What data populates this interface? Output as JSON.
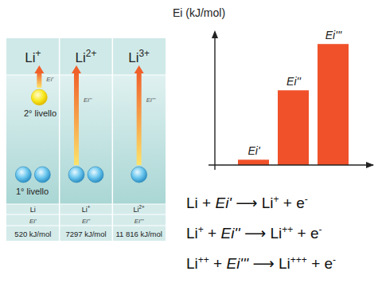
{
  "chart_data": {
    "type": "bar",
    "y_label": "Ei (kJ/mol)",
    "categories": [
      "Ei'",
      "Ei''",
      "Ei'''"
    ],
    "values": [
      520,
      7297,
      11816
    ],
    "color": "#f0512a",
    "ylim": [
      0,
      13000
    ],
    "yticks": [],
    "tick_labels": false,
    "grid": false
  },
  "diagram": {
    "level_labels": [
      "2° livello",
      "1° livello"
    ],
    "columns": [
      {
        "header": {
          "base": "Li",
          "sup": "+"
        },
        "arrow_label": "Ei'",
        "electrons_level2": 1,
        "electrons_level1": 2,
        "species": {
          "base": "Li",
          "sup": ""
        },
        "energy": "Ei'",
        "value_text": "520 kJ/mol"
      },
      {
        "header": {
          "base": "Li",
          "sup": "2+"
        },
        "arrow_label": "Ei''",
        "electrons_level2": 0,
        "electrons_level1": 2,
        "species": {
          "base": "Li",
          "sup": "+"
        },
        "energy": "Ei''",
        "value_text": "7297 kJ/mol"
      },
      {
        "header": {
          "base": "Li",
          "sup": "3+"
        },
        "arrow_label": "Ei'''",
        "electrons_level2": 0,
        "electrons_level1": 1,
        "species": {
          "base": "Li",
          "sup": "2+"
        },
        "energy": "Ei'''",
        "value_text": "11 816 kJ/mol"
      }
    ]
  },
  "equations": [
    [
      {
        "text": "Li + ",
        "style": "normal"
      },
      {
        "text": "Ei'",
        "style": "italic"
      },
      {
        "text": " ⟶ Li",
        "style": "normal"
      },
      {
        "text": "+",
        "style": "sup"
      },
      {
        "text": " + e",
        "style": "normal"
      },
      {
        "text": "-",
        "style": "sup"
      }
    ],
    [
      {
        "text": "Li",
        "style": "normal"
      },
      {
        "text": "+",
        "style": "sup"
      },
      {
        "text": " + ",
        "style": "normal"
      },
      {
        "text": "Ei''",
        "style": "italic"
      },
      {
        "text": " ⟶ Li",
        "style": "normal"
      },
      {
        "text": "++",
        "style": "sup"
      },
      {
        "text": " + e",
        "style": "normal"
      },
      {
        "text": "-",
        "style": "sup"
      }
    ],
    [
      {
        "text": "Li",
        "style": "normal"
      },
      {
        "text": "++",
        "style": "sup"
      },
      {
        "text": " + ",
        "style": "normal"
      },
      {
        "text": "Ei'''",
        "style": "italic"
      },
      {
        "text": " ⟶ Li",
        "style": "normal"
      },
      {
        "text": "+++",
        "style": "sup"
      },
      {
        "text": " + e",
        "style": "normal"
      },
      {
        "text": "-",
        "style": "sup"
      }
    ]
  ]
}
